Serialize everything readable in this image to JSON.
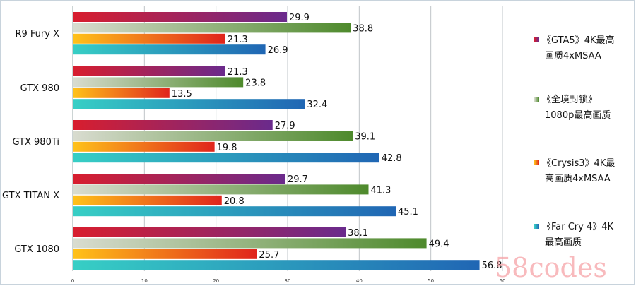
{
  "chart_data": {
    "type": "bar",
    "orientation": "horizontal",
    "categories": [
      "R9 Fury X",
      "GTX 980",
      "GTX 980Ti",
      "GTX TITAN X",
      "GTX 1080"
    ],
    "series": [
      {
        "name": "《GTA5》4K最高画质4xMSAA",
        "legend_lines": [
          "《GTA5》4K最高",
          "画质4xMSAA"
        ],
        "values": [
          29.9,
          21.3,
          27.9,
          29.7,
          38.1
        ],
        "colors": [
          "#d81e2e",
          "#6a2a8c"
        ]
      },
      {
        "name": "《全境封锁》1080p最高画质",
        "legend_lines": [
          "《全境封锁》",
          "1080p最高画质"
        ],
        "values": [
          38.8,
          23.8,
          39.1,
          41.3,
          49.4
        ],
        "colors": [
          "#d9dcd0",
          "#4e8a2c"
        ]
      },
      {
        "name": "《Crysis3》4K最高画质4xMSAA",
        "legend_lines": [
          "《Crysis3》4K最",
          "高画质4xMSAA"
        ],
        "values": [
          21.3,
          13.5,
          19.8,
          20.8,
          25.7
        ],
        "colors": [
          "#ffc21a",
          "#e0241c"
        ]
      },
      {
        "name": "《Far Cry 4》4K最高画质",
        "legend_lines": [
          "《Far Cry 4》4K",
          "最高画质"
        ],
        "values": [
          26.9,
          32.4,
          42.8,
          45.1,
          56.8
        ],
        "colors": [
          "#37cfc5",
          "#2066b4"
        ]
      }
    ],
    "xlim": [
      0,
      60
    ],
    "xticks": [
      0,
      10,
      20,
      30,
      40,
      50,
      60
    ],
    "grid": true,
    "legend_position": "right"
  },
  "watermark": "58codes"
}
